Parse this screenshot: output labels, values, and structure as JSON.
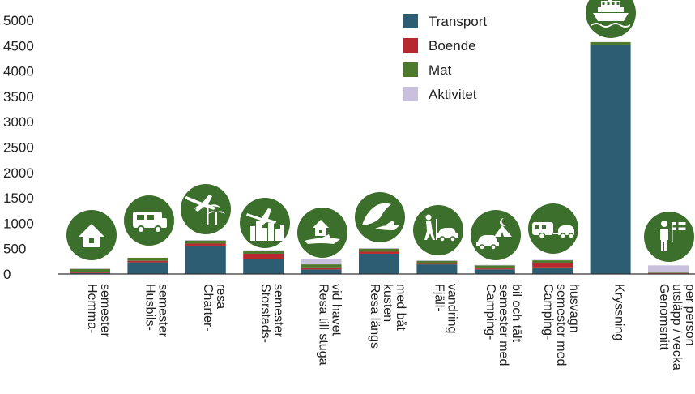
{
  "chart_data": {
    "type": "bar",
    "stacked": true,
    "ylim": [
      0,
      5000
    ],
    "yticks": [
      0,
      500,
      1000,
      1500,
      2000,
      2500,
      3000,
      3500,
      4000,
      4500,
      5000
    ],
    "grid": false,
    "legend_position": "top-right",
    "categories": [
      [
        "Hemma-",
        "semester"
      ],
      [
        "Husbils-",
        "semester"
      ],
      [
        "Charter-",
        "resa"
      ],
      [
        "Storstads-",
        "semester"
      ],
      [
        "Resa till stuga",
        "vid havet"
      ],
      [
        "Resa längs",
        "kusten",
        "med båt"
      ],
      [
        "Fjäll-",
        "vandring"
      ],
      [
        "Camping-",
        "semester med",
        "bil och tält"
      ],
      [
        "Camping-",
        "semester med",
        "husvagn"
      ],
      [
        "Kryssning"
      ],
      [
        "Genomsnitt",
        "utsläpp / vecka",
        "per person"
      ]
    ],
    "icons": [
      "house-icon",
      "camper-icon",
      "plane-palm-icon",
      "plane-city-icon",
      "cabin-boat-icon",
      "coast-boat-icon",
      "hiker-car-icon",
      "tent-car-icon",
      "caravan-icon",
      "ship-icon",
      "person-flag-icon"
    ],
    "series": [
      {
        "name": "Transport",
        "color": "#2d5d73",
        "values": [
          20,
          230,
          560,
          300,
          90,
          400,
          190,
          90,
          130,
          4510,
          10
        ]
      },
      {
        "name": "Boende",
        "color": "#b8282f",
        "values": [
          20,
          30,
          40,
          100,
          40,
          40,
          10,
          20,
          80,
          0,
          10
        ]
      },
      {
        "name": "Mat",
        "color": "#4d7a2c",
        "values": [
          60,
          60,
          60,
          60,
          60,
          60,
          60,
          60,
          60,
          60,
          10
        ]
      },
      {
        "name": "Aktivitet",
        "color": "#c9c0de",
        "values": [
          10,
          0,
          10,
          10,
          110,
          10,
          10,
          10,
          10,
          0,
          140
        ]
      }
    ],
    "icon_color": "#3c6f2b"
  }
}
